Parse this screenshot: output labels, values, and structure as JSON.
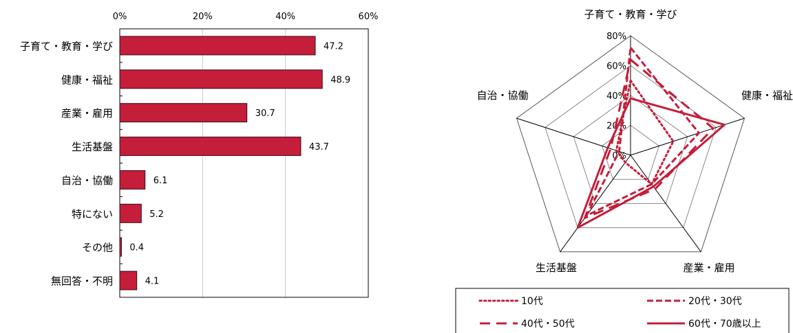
{
  "colors": {
    "bar": "#C41E3A",
    "series": "#C41E3A",
    "grid": "#c8c8c8",
    "axis": "#000000",
    "radar_grid": "#888888"
  },
  "chart_data": [
    {
      "type": "bar",
      "orientation": "horizontal",
      "categories": [
        "子育て・教育・学び",
        "健康・福祉",
        "産業・雇用",
        "生活基盤",
        "自治・協働",
        "特にない",
        "その他",
        "無回答・不明"
      ],
      "values": [
        47.2,
        48.9,
        30.7,
        43.7,
        6.1,
        5.2,
        0.4,
        4.1
      ],
      "value_labels": [
        "47.2",
        "48.9",
        "30.7",
        "43.7",
        "6.1",
        "5.2",
        "0.4",
        "4.1"
      ],
      "xlim": [
        0,
        60
      ],
      "xticks": [
        0,
        20,
        40,
        60
      ],
      "xtick_labels": [
        "0%",
        "20%",
        "40%",
        "60%"
      ],
      "grid": true
    },
    {
      "type": "radar",
      "axes": [
        "子育て・教育・学び",
        "健康・福祉",
        "産業・雇用",
        "生活基盤",
        "自治・協働"
      ],
      "rlim": [
        0,
        80
      ],
      "rticks": [
        0,
        20,
        40,
        60,
        80
      ],
      "rtick_labels": [
        "0%",
        "20%",
        "40%",
        "60%",
        "80%"
      ],
      "legend": "bottom",
      "series": [
        {
          "name": "10代",
          "style": "dotted",
          "values": [
            50,
            30,
            24,
            6,
            10
          ]
        },
        {
          "name": "20代・30代",
          "style": "dashed",
          "values": [
            72,
            48,
            24,
            50,
            8
          ]
        },
        {
          "name": "40代・50代",
          "style": "longdash",
          "values": [
            64,
            58,
            28,
            52,
            14
          ]
        },
        {
          "name": "60代・70歳以上",
          "style": "solid",
          "values": [
            38,
            66,
            26,
            60,
            16
          ]
        }
      ]
    }
  ]
}
